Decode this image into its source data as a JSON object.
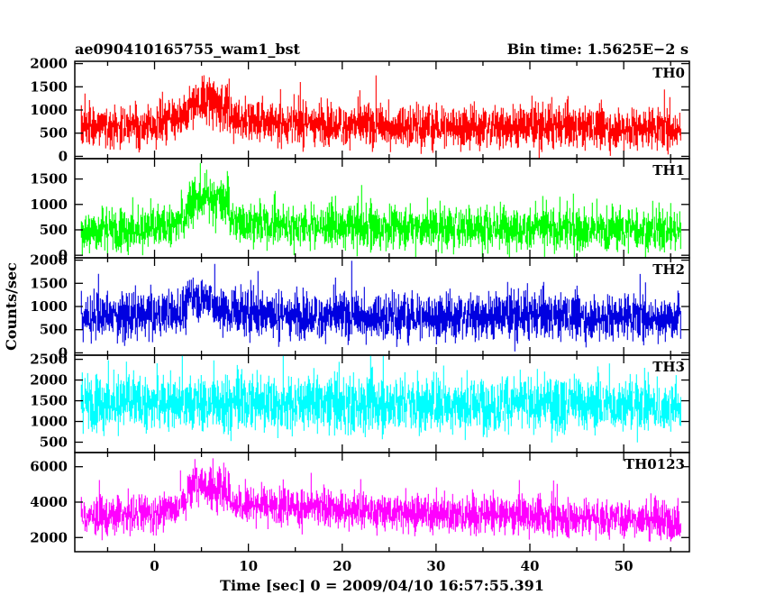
{
  "chart_data": {
    "type": "line",
    "title_left": "ae090410165755_wam1_bst",
    "title_right": "Bin time: 1.5625E−2 s",
    "xlabel": "Time [sec] 0 = 2009/04/10 16:57:55.391",
    "ylabel": "Counts/sec",
    "xlim": [
      -8.5,
      57
    ],
    "x_ticks": [
      0,
      10,
      20,
      30,
      40,
      50
    ],
    "x_data_range": [
      -7.8,
      56.1
    ],
    "grid": false,
    "panels": [
      {
        "name": "TH0",
        "color": "#ff0000",
        "ylim": [
          -50,
          2050
        ],
        "y_ticks": [
          0,
          500,
          1000,
          1500,
          2000
        ],
        "baseline": 650,
        "noise": 300,
        "burst": [
          {
            "start": 3.5,
            "end": 8.0,
            "extra": 500
          }
        ],
        "profile": [
          [
            -7.8,
            650
          ],
          [
            0,
            650
          ],
          [
            4.5,
            900
          ],
          [
            12,
            750
          ],
          [
            25,
            650
          ],
          [
            56.1,
            600
          ]
        ]
      },
      {
        "name": "TH1",
        "color": "#00ff00",
        "ylim": [
          -50,
          1900
        ],
        "y_ticks": [
          0,
          500,
          1000,
          1500
        ],
        "baseline": 500,
        "noise": 280,
        "burst": [
          {
            "start": 3.5,
            "end": 8.0,
            "extra": 550
          }
        ],
        "profile": [
          [
            -7.8,
            500
          ],
          [
            0,
            500
          ],
          [
            4.5,
            800
          ],
          [
            12,
            600
          ],
          [
            25,
            550
          ],
          [
            56.1,
            500
          ]
        ]
      },
      {
        "name": "TH2",
        "color": "#0000e0",
        "ylim": [
          -50,
          2050
        ],
        "y_ticks": [
          0,
          500,
          1000,
          1500,
          2000
        ],
        "baseline": 800,
        "noise": 330,
        "burst": [
          {
            "start": 3.5,
            "end": 6.5,
            "extra": 450
          }
        ],
        "profile": [
          [
            -7.8,
            800
          ],
          [
            0,
            800
          ],
          [
            4.5,
            950
          ],
          [
            12,
            820
          ],
          [
            25,
            780
          ],
          [
            56.1,
            780
          ]
        ]
      },
      {
        "name": "TH3",
        "color": "#00ffff",
        "ylim": [
          250,
          2600
        ],
        "y_ticks": [
          500,
          1000,
          1500,
          2000,
          2500
        ],
        "baseline": 1450,
        "noise": 450,
        "burst": [],
        "profile": [
          [
            -7.8,
            1450
          ],
          [
            56.1,
            1400
          ]
        ]
      },
      {
        "name": "TH0123",
        "color": "#ff00ff",
        "ylim": [
          1200,
          6800
        ],
        "y_ticks": [
          2000,
          4000,
          6000
        ],
        "baseline": 3100,
        "noise": 700,
        "burst": [
          {
            "start": 3.5,
            "end": 8.0,
            "extra": 1300
          }
        ],
        "profile": [
          [
            -7.8,
            3200
          ],
          [
            0,
            3300
          ],
          [
            4.5,
            4200
          ],
          [
            12,
            3800
          ],
          [
            25,
            3400
          ],
          [
            56.1,
            3000
          ]
        ]
      }
    ]
  }
}
